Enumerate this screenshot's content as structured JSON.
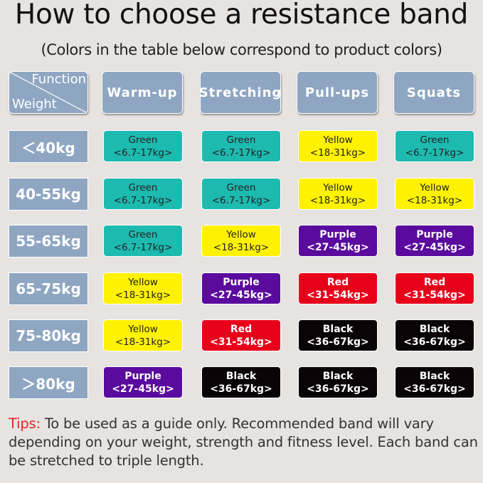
{
  "title": "How to choose a resistance band",
  "subtitle": "(Colors in the table below correspond to product colors)",
  "table": {
    "corner": {
      "function_label": "Function",
      "weight_label": "Weight"
    },
    "columns": [
      "Warm-up",
      "Stretching",
      "Pull-ups",
      "Squats"
    ],
    "rows": [
      {
        "weight": "＜40kg",
        "cells": [
          {
            "color": "Green",
            "range": "<6.7-17kg>"
          },
          {
            "color": "Green",
            "range": "<6.7-17kg>"
          },
          {
            "color": "Yellow",
            "range": "<18-31kg>"
          },
          {
            "color": "Green",
            "range": "<6.7-17kg>"
          }
        ]
      },
      {
        "weight": "40-55kg",
        "cells": [
          {
            "color": "Green",
            "range": "<6.7-17kg>"
          },
          {
            "color": "Green",
            "range": "<6.7-17kg>"
          },
          {
            "color": "Yellow",
            "range": "<18-31kg>"
          },
          {
            "color": "Yellow",
            "range": "<18-31kg>"
          }
        ]
      },
      {
        "weight": "55-65kg",
        "cells": [
          {
            "color": "Green",
            "range": "<6.7-17kg>"
          },
          {
            "color": "Yellow",
            "range": "<18-31kg>"
          },
          {
            "color": "Purple",
            "range": "<27-45kg>"
          },
          {
            "color": "Purple",
            "range": "<27-45kg>"
          }
        ]
      },
      {
        "weight": "65-75kg",
        "cells": [
          {
            "color": "Yellow",
            "range": "<18-31kg>"
          },
          {
            "color": "Purple",
            "range": "<27-45kg>"
          },
          {
            "color": "Red",
            "range": "<31-54kg>"
          },
          {
            "color": "Red",
            "range": "<31-54kg>"
          }
        ]
      },
      {
        "weight": "75-80kg",
        "cells": [
          {
            "color": "Yellow",
            "range": "<18-31kg>"
          },
          {
            "color": "Red",
            "range": "<31-54kg>"
          },
          {
            "color": "Black",
            "range": "<36-67kg>"
          },
          {
            "color": "Black",
            "range": "<36-67kg>"
          }
        ]
      },
      {
        "weight": "＞80kg",
        "cells": [
          {
            "color": "Purple",
            "range": "<27-45kg>"
          },
          {
            "color": "Black",
            "range": "<36-67kg>"
          },
          {
            "color": "Black",
            "range": "<36-67kg>"
          },
          {
            "color": "Black",
            "range": "<36-67kg>"
          }
        ]
      }
    ]
  },
  "band_colors": {
    "Green": "#1dbab0",
    "Yellow": "#fff200",
    "Purple": "#5a0b9e",
    "Red": "#e8001b",
    "Black": "#0a0406"
  },
  "header_color": "#8ea6c2",
  "tips": {
    "label": "Tips:",
    "text": " To be used as a guide only. Recommended band will vary depending on your weight, strength and fitness level. Each band can be stretched to triple length."
  }
}
